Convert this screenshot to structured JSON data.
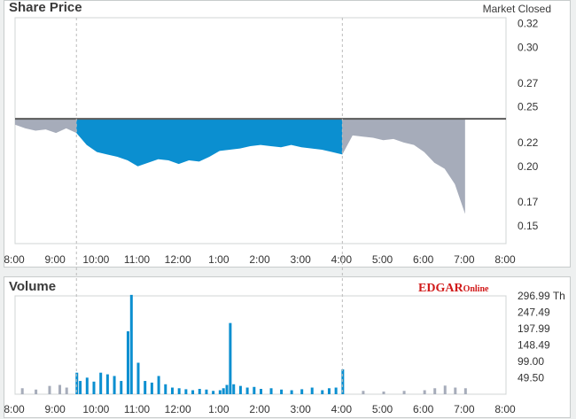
{
  "header": {
    "price_title": "Share Price",
    "market_status": "Market Closed",
    "volume_title": "Volume",
    "logo_main": "EDGAR",
    "logo_sub": "Online"
  },
  "colors": {
    "price_up": "#a6acba",
    "price_regular": "#0b8fd0",
    "reference_line": "#5a5a5a",
    "volume_regular": "#0b8fd0",
    "volume_extended": "#a6acba",
    "session_divider": "#bbbbbb"
  },
  "chart_data": [
    {
      "type": "area",
      "title": "Share Price",
      "reference_price": 0.24,
      "regular_session": [
        "9:30",
        "16:00"
      ],
      "ylim": [
        0.135,
        0.325
      ],
      "y_ticks": [
        "0.32",
        "0.30",
        "0.27",
        "0.25",
        "0.22",
        "0.20",
        "0.17",
        "0.15"
      ],
      "x_ticks": [
        "8:00",
        "9:00",
        "10:00",
        "11:00",
        "12:00",
        "1:00",
        "2:00",
        "3:00",
        "4:00",
        "5:00",
        "6:00",
        "7:00",
        "8:00"
      ],
      "series": [
        {
          "x": [
            "8:00",
            "8:15",
            "8:30",
            "8:45",
            "9:00",
            "9:15",
            "9:30",
            "9:45",
            "10:00",
            "10:15",
            "10:30",
            "10:45",
            "11:00",
            "11:15",
            "11:30",
            "11:45",
            "12:00",
            "12:15",
            "12:30",
            "12:45",
            "13:00",
            "13:15",
            "13:30",
            "13:45",
            "14:00",
            "14:15",
            "14:30",
            "14:45",
            "15:00",
            "15:15",
            "15:30",
            "15:45",
            "16:00",
            "16:15",
            "16:30",
            "16:45",
            "17:00",
            "17:15",
            "17:30",
            "17:45",
            "18:00",
            "18:15",
            "18:30",
            "18:45",
            "19:00"
          ],
          "values": [
            0.235,
            0.232,
            0.23,
            0.231,
            0.228,
            0.232,
            0.228,
            0.218,
            0.212,
            0.21,
            0.208,
            0.205,
            0.2,
            0.203,
            0.206,
            0.205,
            0.202,
            0.205,
            0.204,
            0.208,
            0.213,
            0.214,
            0.215,
            0.217,
            0.218,
            0.217,
            0.216,
            0.218,
            0.216,
            0.215,
            0.214,
            0.212,
            0.21,
            0.226,
            0.225,
            0.224,
            0.222,
            0.223,
            0.22,
            0.218,
            0.212,
            0.203,
            0.198,
            0.185,
            0.16
          ]
        }
      ]
    },
    {
      "type": "bar",
      "title": "Volume",
      "ylim": [
        0,
        297
      ],
      "y_ticks": [
        "296.99 Th",
        "247.49",
        "197.99",
        "148.49",
        "99.00",
        "49.50"
      ],
      "x_ticks": [
        "8:00",
        "9:00",
        "10:00",
        "11:00",
        "12:00",
        "1:00",
        "2:00",
        "3:00",
        "4:00",
        "5:00",
        "6:00",
        "7:00",
        "8:00"
      ],
      "series": [
        {
          "x": [
            "8:10",
            "8:30",
            "8:50",
            "9:05",
            "9:15",
            "9:30",
            "9:35",
            "9:45",
            "9:55",
            "10:05",
            "10:15",
            "10:25",
            "10:35",
            "10:45",
            "10:50",
            "11:00",
            "11:10",
            "11:20",
            "11:30",
            "11:40",
            "11:50",
            "12:00",
            "12:10",
            "12:20",
            "12:30",
            "12:40",
            "12:50",
            "13:00",
            "13:05",
            "13:10",
            "13:15",
            "13:20",
            "13:30",
            "13:40",
            "13:50",
            "14:00",
            "14:15",
            "14:30",
            "14:45",
            "15:00",
            "15:15",
            "15:30",
            "15:40",
            "15:50",
            "16:00",
            "16:30",
            "17:00",
            "17:30",
            "18:00",
            "18:15",
            "18:30",
            "18:45",
            "19:00"
          ],
          "values": [
            18,
            14,
            25,
            28,
            20,
            65,
            40,
            50,
            38,
            65,
            60,
            55,
            40,
            190,
            300,
            95,
            40,
            35,
            55,
            30,
            20,
            18,
            15,
            12,
            16,
            14,
            10,
            12,
            18,
            28,
            215,
            30,
            25,
            20,
            22,
            16,
            18,
            14,
            12,
            15,
            20,
            12,
            18,
            20,
            75,
            10,
            8,
            10,
            12,
            18,
            26,
            20,
            18
          ]
        }
      ]
    }
  ]
}
